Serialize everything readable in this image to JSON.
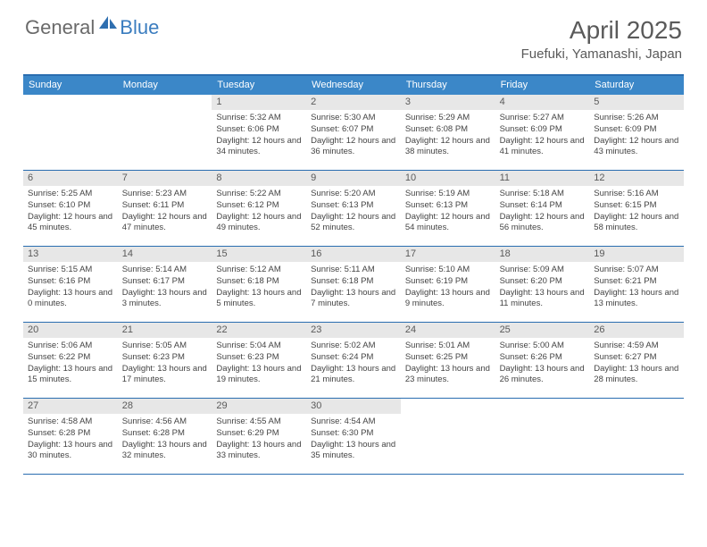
{
  "logo": {
    "general": "General",
    "blue": "Blue"
  },
  "title": "April 2025",
  "location": "Fuefuki, Yamanashi, Japan",
  "colors": {
    "header_bg": "#3b87c8",
    "border": "#2a6db0",
    "daynum_bg": "#e7e7e7",
    "text_gray": "#5a5a5a",
    "logo_blue": "#3b7dbf"
  },
  "weekdays": [
    "Sunday",
    "Monday",
    "Tuesday",
    "Wednesday",
    "Thursday",
    "Friday",
    "Saturday"
  ],
  "weeks": [
    [
      null,
      null,
      {
        "n": "1",
        "sr": "5:32 AM",
        "ss": "6:06 PM",
        "dl": "12 hours and 34 minutes."
      },
      {
        "n": "2",
        "sr": "5:30 AM",
        "ss": "6:07 PM",
        "dl": "12 hours and 36 minutes."
      },
      {
        "n": "3",
        "sr": "5:29 AM",
        "ss": "6:08 PM",
        "dl": "12 hours and 38 minutes."
      },
      {
        "n": "4",
        "sr": "5:27 AM",
        "ss": "6:09 PM",
        "dl": "12 hours and 41 minutes."
      },
      {
        "n": "5",
        "sr": "5:26 AM",
        "ss": "6:09 PM",
        "dl": "12 hours and 43 minutes."
      }
    ],
    [
      {
        "n": "6",
        "sr": "5:25 AM",
        "ss": "6:10 PM",
        "dl": "12 hours and 45 minutes."
      },
      {
        "n": "7",
        "sr": "5:23 AM",
        "ss": "6:11 PM",
        "dl": "12 hours and 47 minutes."
      },
      {
        "n": "8",
        "sr": "5:22 AM",
        "ss": "6:12 PM",
        "dl": "12 hours and 49 minutes."
      },
      {
        "n": "9",
        "sr": "5:20 AM",
        "ss": "6:13 PM",
        "dl": "12 hours and 52 minutes."
      },
      {
        "n": "10",
        "sr": "5:19 AM",
        "ss": "6:13 PM",
        "dl": "12 hours and 54 minutes."
      },
      {
        "n": "11",
        "sr": "5:18 AM",
        "ss": "6:14 PM",
        "dl": "12 hours and 56 minutes."
      },
      {
        "n": "12",
        "sr": "5:16 AM",
        "ss": "6:15 PM",
        "dl": "12 hours and 58 minutes."
      }
    ],
    [
      {
        "n": "13",
        "sr": "5:15 AM",
        "ss": "6:16 PM",
        "dl": "13 hours and 0 minutes."
      },
      {
        "n": "14",
        "sr": "5:14 AM",
        "ss": "6:17 PM",
        "dl": "13 hours and 3 minutes."
      },
      {
        "n": "15",
        "sr": "5:12 AM",
        "ss": "6:18 PM",
        "dl": "13 hours and 5 minutes."
      },
      {
        "n": "16",
        "sr": "5:11 AM",
        "ss": "6:18 PM",
        "dl": "13 hours and 7 minutes."
      },
      {
        "n": "17",
        "sr": "5:10 AM",
        "ss": "6:19 PM",
        "dl": "13 hours and 9 minutes."
      },
      {
        "n": "18",
        "sr": "5:09 AM",
        "ss": "6:20 PM",
        "dl": "13 hours and 11 minutes."
      },
      {
        "n": "19",
        "sr": "5:07 AM",
        "ss": "6:21 PM",
        "dl": "13 hours and 13 minutes."
      }
    ],
    [
      {
        "n": "20",
        "sr": "5:06 AM",
        "ss": "6:22 PM",
        "dl": "13 hours and 15 minutes."
      },
      {
        "n": "21",
        "sr": "5:05 AM",
        "ss": "6:23 PM",
        "dl": "13 hours and 17 minutes."
      },
      {
        "n": "22",
        "sr": "5:04 AM",
        "ss": "6:23 PM",
        "dl": "13 hours and 19 minutes."
      },
      {
        "n": "23",
        "sr": "5:02 AM",
        "ss": "6:24 PM",
        "dl": "13 hours and 21 minutes."
      },
      {
        "n": "24",
        "sr": "5:01 AM",
        "ss": "6:25 PM",
        "dl": "13 hours and 23 minutes."
      },
      {
        "n": "25",
        "sr": "5:00 AM",
        "ss": "6:26 PM",
        "dl": "13 hours and 26 minutes."
      },
      {
        "n": "26",
        "sr": "4:59 AM",
        "ss": "6:27 PM",
        "dl": "13 hours and 28 minutes."
      }
    ],
    [
      {
        "n": "27",
        "sr": "4:58 AM",
        "ss": "6:28 PM",
        "dl": "13 hours and 30 minutes."
      },
      {
        "n": "28",
        "sr": "4:56 AM",
        "ss": "6:28 PM",
        "dl": "13 hours and 32 minutes."
      },
      {
        "n": "29",
        "sr": "4:55 AM",
        "ss": "6:29 PM",
        "dl": "13 hours and 33 minutes."
      },
      {
        "n": "30",
        "sr": "4:54 AM",
        "ss": "6:30 PM",
        "dl": "13 hours and 35 minutes."
      },
      null,
      null,
      null
    ]
  ],
  "labels": {
    "sunrise": "Sunrise:",
    "sunset": "Sunset:",
    "daylight": "Daylight:"
  }
}
